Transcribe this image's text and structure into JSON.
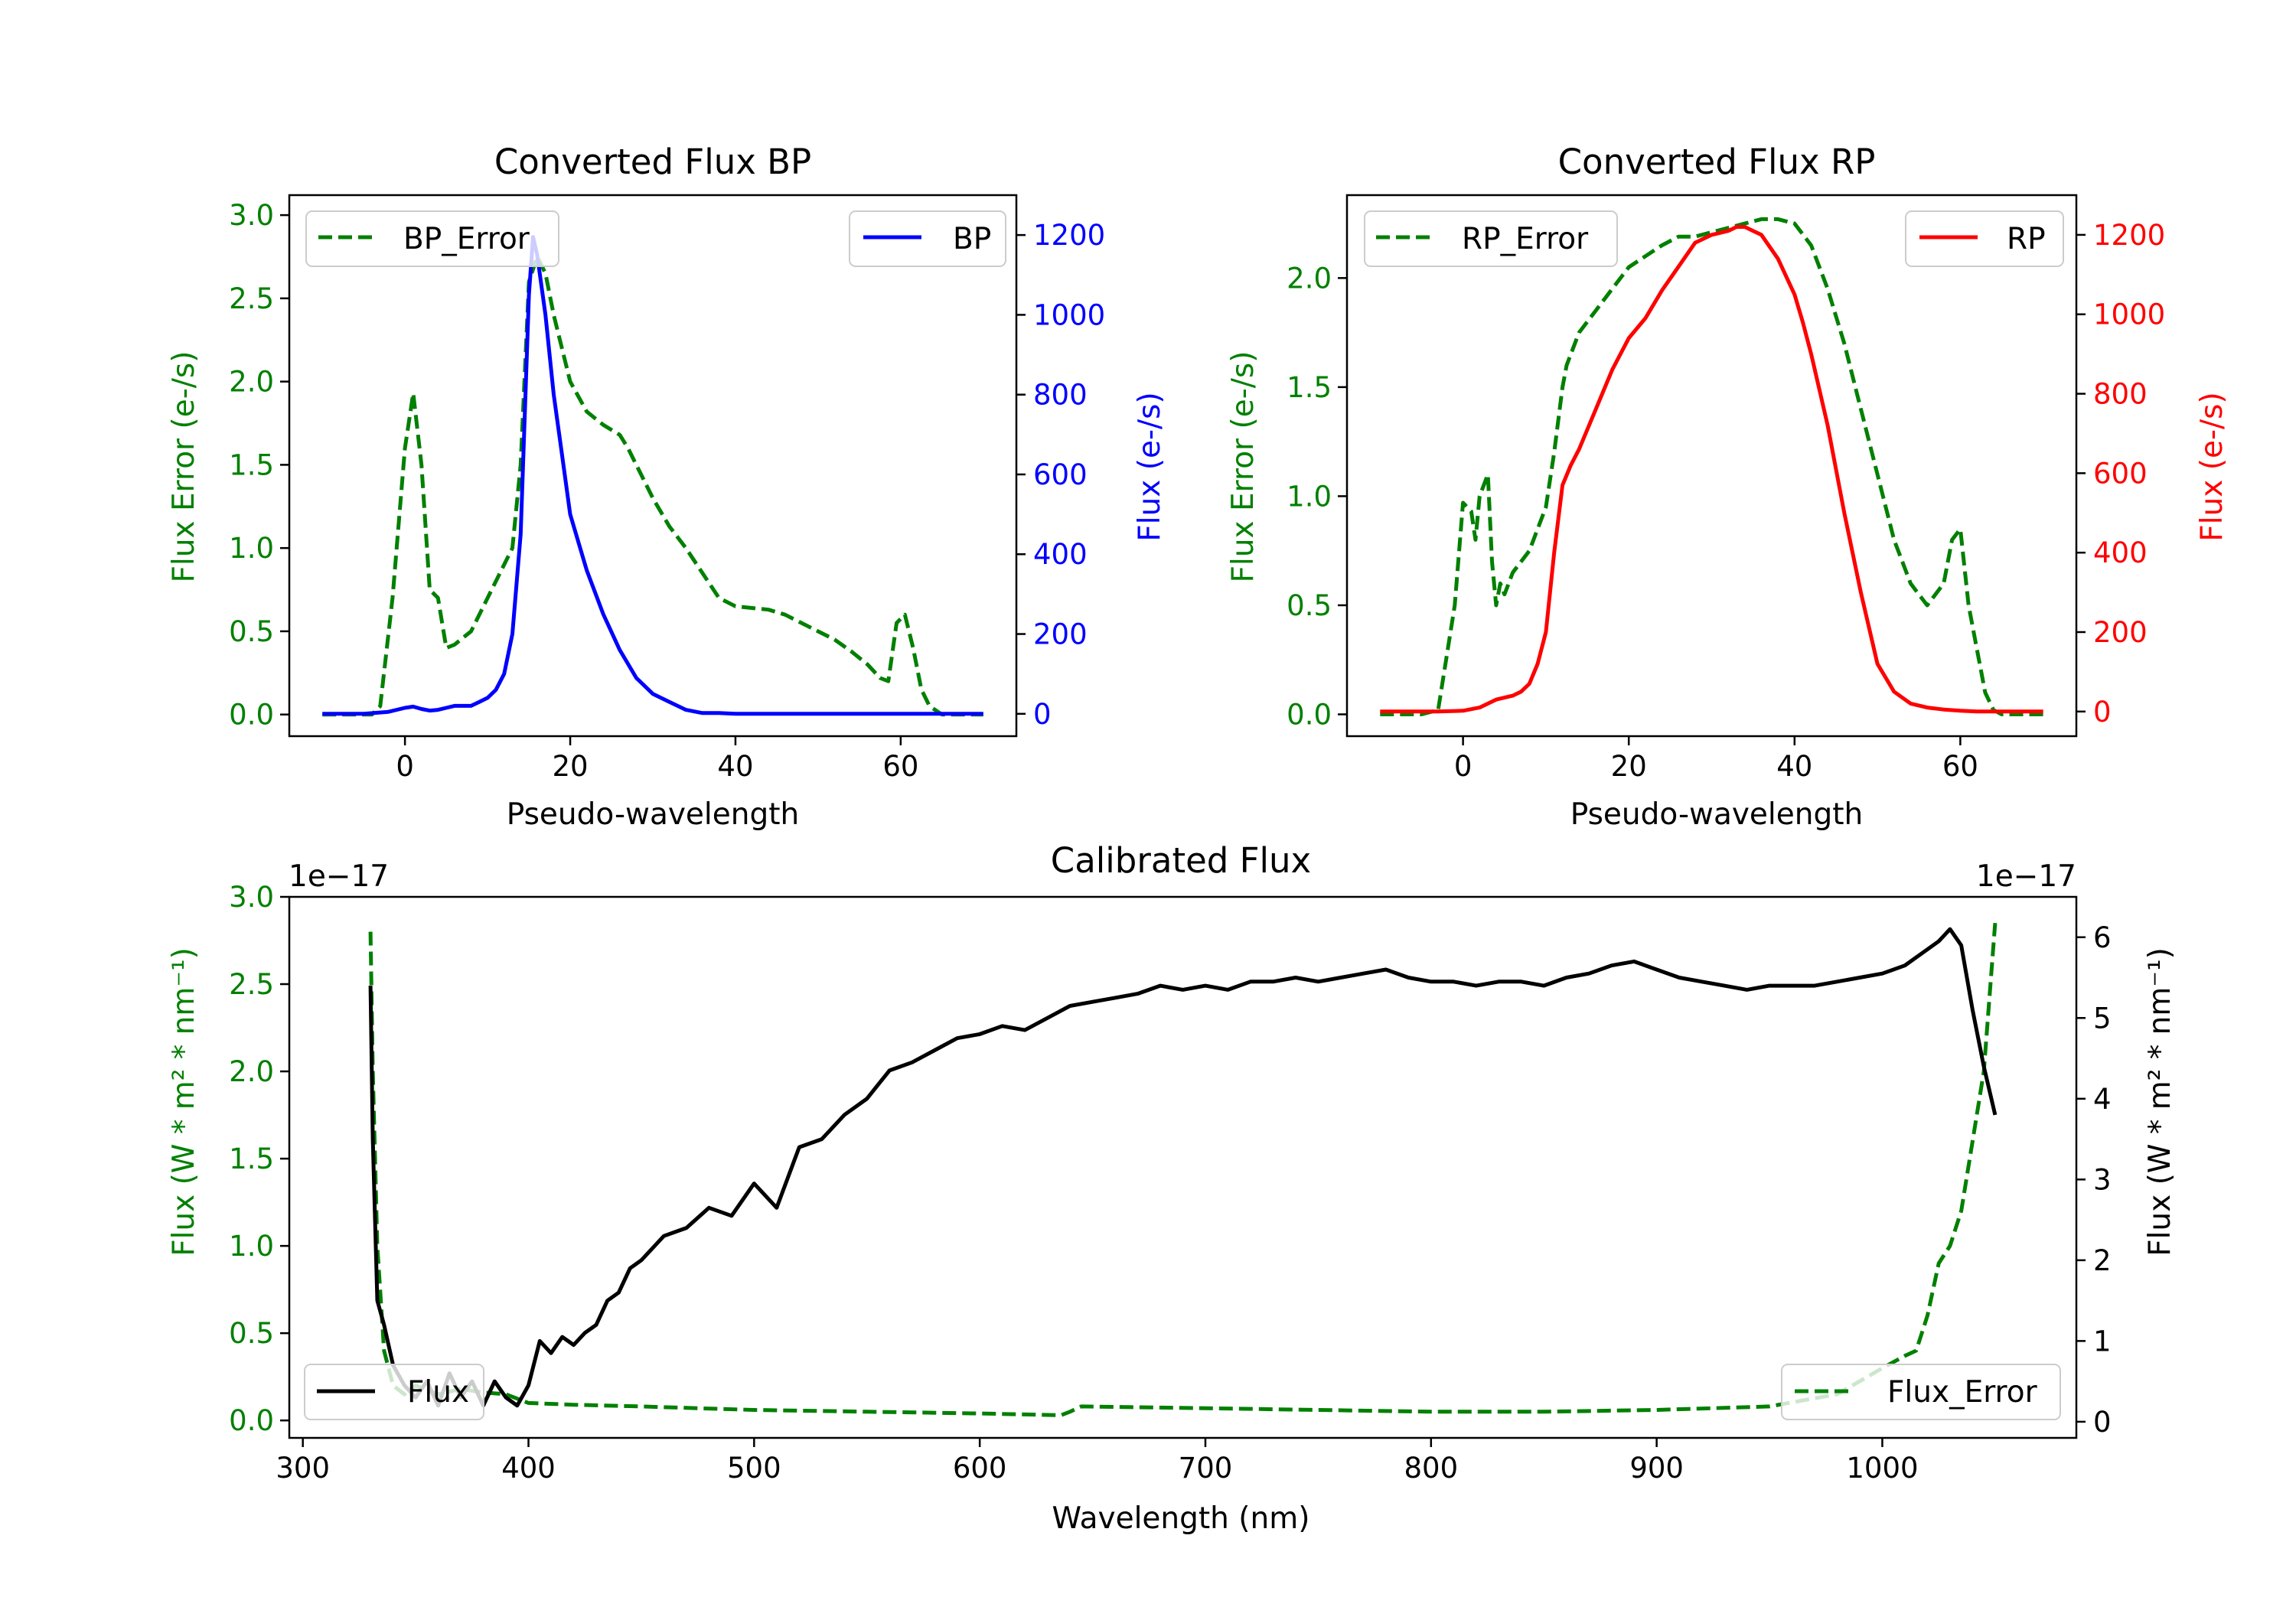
{
  "colors": {
    "green": "#008000",
    "blue": "#0000ff",
    "red": "#ff0000",
    "black": "#000000"
  },
  "chart_data": [
    {
      "id": "bp",
      "type": "line",
      "title": "Converted Flux BP",
      "xlabel": "Pseudo-wavelength",
      "ylabel_left": "Flux Error (e-/s)",
      "ylabel_right": "Flux (e-/s)",
      "xlim": [
        -14,
        74
      ],
      "ylim_left": [
        -0.13,
        3.12
      ],
      "ylim_right": [
        -56,
        1300
      ],
      "xticks": [
        "0",
        "20",
        "40",
        "60"
      ],
      "yticks_left": [
        "0.0",
        "0.5",
        "1.0",
        "1.5",
        "2.0",
        "2.5",
        "3.0"
      ],
      "yticks_right": [
        "0",
        "200",
        "400",
        "600",
        "800",
        "1000",
        "1200"
      ],
      "legend_left": "BP_Error",
      "legend_right": "BP",
      "series": [
        {
          "name": "BP_Error",
          "axis": "left",
          "color": "#008000",
          "style": "dashed",
          "x": [
            -10,
            -4,
            -3,
            -1.5,
            0,
            1,
            2,
            3,
            4,
            5,
            6,
            8,
            10,
            12,
            13,
            14,
            15,
            16,
            17,
            18,
            20,
            22,
            24,
            26,
            27,
            28,
            30,
            32,
            34,
            36,
            38,
            40,
            42,
            44,
            46,
            48,
            50,
            52,
            54,
            56,
            57.5,
            58.5,
            59.5,
            60.5,
            61.5,
            62.5,
            63.5,
            65,
            70
          ],
          "y": [
            0,
            0,
            0.05,
            0.7,
            1.6,
            1.93,
            1.5,
            0.75,
            0.7,
            0.4,
            0.42,
            0.5,
            0.7,
            0.9,
            1.0,
            1.5,
            2.6,
            2.75,
            2.65,
            2.4,
            2.0,
            1.82,
            1.74,
            1.68,
            1.6,
            1.5,
            1.3,
            1.13,
            1.0,
            0.85,
            0.7,
            0.65,
            0.64,
            0.63,
            0.6,
            0.55,
            0.5,
            0.45,
            0.38,
            0.3,
            0.22,
            0.2,
            0.55,
            0.6,
            0.4,
            0.15,
            0.05,
            0,
            0
          ]
        },
        {
          "name": "BP",
          "axis": "right",
          "color": "#0000ff",
          "style": "solid",
          "x": [
            -10,
            -5,
            -2,
            0,
            1,
            2,
            3,
            4,
            5,
            6,
            8,
            9,
            10,
            11,
            12,
            13,
            14,
            15,
            15.5,
            16,
            17,
            18,
            19,
            20,
            22,
            24,
            26,
            28,
            30,
            32,
            34,
            36,
            38,
            40,
            45,
            50,
            55,
            60,
            65,
            70
          ],
          "y": [
            0,
            0,
            5,
            15,
            18,
            12,
            8,
            10,
            15,
            20,
            20,
            30,
            40,
            60,
            100,
            200,
            450,
            1050,
            1195,
            1150,
            1000,
            800,
            650,
            500,
            360,
            250,
            160,
            90,
            50,
            30,
            10,
            2,
            2,
            0,
            0,
            0,
            0,
            0,
            0,
            0
          ]
        }
      ]
    },
    {
      "id": "rp",
      "type": "line",
      "title": "Converted Flux RP",
      "xlabel": "Pseudo-wavelength",
      "ylabel_left": "Flux Error (e-/s)",
      "ylabel_right": "Flux (e-/s)",
      "xlim": [
        -14,
        74
      ],
      "ylim_left": [
        -0.1,
        2.38
      ],
      "ylim_right": [
        -62,
        1300
      ],
      "xticks": [
        "0",
        "20",
        "40",
        "60"
      ],
      "yticks_left": [
        "0.0",
        "0.5",
        "1.0",
        "1.5",
        "2.0"
      ],
      "yticks_right": [
        "0",
        "200",
        "400",
        "600",
        "800",
        "1000",
        "1200"
      ],
      "legend_left": "RP_Error",
      "legend_right": "RP",
      "series": [
        {
          "name": "RP_Error",
          "axis": "left",
          "color": "#008000",
          "style": "dashed",
          "x": [
            -10,
            -5,
            -3,
            -1,
            0,
            1,
            1.5,
            2,
            3,
            3.5,
            4,
            4.5,
            5,
            6,
            8,
            10,
            11,
            12,
            12.5,
            13,
            14,
            16,
            18,
            20,
            22,
            24,
            26,
            28,
            30,
            32,
            34,
            36,
            38,
            40,
            42,
            44,
            46,
            48,
            50,
            52,
            54,
            55,
            56,
            57,
            58,
            59,
            60,
            61,
            62,
            63,
            64,
            65,
            70
          ],
          "y": [
            0,
            0,
            0.02,
            0.5,
            0.97,
            0.93,
            0.8,
            1.0,
            1.1,
            0.7,
            0.5,
            0.6,
            0.55,
            0.65,
            0.75,
            0.95,
            1.2,
            1.5,
            1.6,
            1.65,
            1.75,
            1.85,
            1.95,
            2.05,
            2.1,
            2.15,
            2.19,
            2.19,
            2.21,
            2.23,
            2.25,
            2.27,
            2.27,
            2.25,
            2.15,
            1.95,
            1.7,
            1.4,
            1.1,
            0.8,
            0.6,
            0.55,
            0.5,
            0.55,
            0.6,
            0.8,
            0.85,
            0.5,
            0.3,
            0.1,
            0.02,
            0,
            0
          ]
        },
        {
          "name": "RP",
          "axis": "right",
          "color": "#ff0000",
          "style": "solid",
          "x": [
            -10,
            -3,
            0,
            2,
            4,
            6,
            7,
            8,
            9,
            10,
            11,
            12,
            13,
            14,
            16,
            18,
            20,
            22,
            24,
            26,
            28,
            30,
            32,
            33,
            34,
            35,
            36,
            38,
            40,
            41,
            42,
            44,
            46,
            48,
            50,
            52,
            54,
            56,
            58,
            60,
            62,
            66,
            70
          ],
          "y": [
            0,
            0,
            2,
            10,
            30,
            40,
            50,
            70,
            120,
            200,
            400,
            570,
            620,
            660,
            760,
            860,
            940,
            990,
            1060,
            1120,
            1180,
            1200,
            1210,
            1220,
            1220,
            1210,
            1200,
            1140,
            1050,
            980,
            900,
            720,
            500,
            300,
            120,
            50,
            20,
            10,
            5,
            2,
            0,
            0,
            0
          ]
        }
      ]
    },
    {
      "id": "cal",
      "type": "line",
      "title": "Calibrated Flux",
      "xlabel": "Wavelength (nm)",
      "ylabel_left": "Flux (W * m² * nm⁻¹)",
      "ylabel_right": "Flux (W * m² * nm⁻¹)",
      "offset_left": "1e−17",
      "offset_right": "1e−17",
      "xlim": [
        294,
        1086
      ],
      "ylim_left": [
        -0.1,
        3.0
      ],
      "ylim_right": [
        -0.2,
        6.5
      ],
      "xticks": [
        "300",
        "400",
        "500",
        "600",
        "700",
        "800",
        "900",
        "1000"
      ],
      "yticks_left": [
        "0.0",
        "0.5",
        "1.0",
        "1.5",
        "2.0",
        "2.5",
        "3.0"
      ],
      "yticks_right": [
        "0",
        "1",
        "2",
        "3",
        "4",
        "5",
        "6"
      ],
      "legend_left": "Flux",
      "legend_right": "Flux_Error",
      "series": [
        {
          "name": "Flux_Error",
          "axis": "left",
          "color": "#008000",
          "style": "dashed",
          "x": [
            330,
            331,
            333,
            336,
            340,
            345,
            350,
            360,
            370,
            380,
            390,
            400,
            420,
            450,
            500,
            550,
            600,
            636,
            640,
            645,
            700,
            750,
            800,
            850,
            900,
            950,
            980,
            1000,
            1010,
            1015,
            1020,
            1025,
            1030,
            1035,
            1040,
            1045,
            1050
          ],
          "y": [
            2.8,
            2.0,
            1.0,
            0.4,
            0.2,
            0.15,
            0.2,
            0.15,
            0.18,
            0.16,
            0.15,
            0.1,
            0.09,
            0.08,
            0.06,
            0.05,
            0.04,
            0.03,
            0.05,
            0.08,
            0.07,
            0.06,
            0.05,
            0.05,
            0.06,
            0.08,
            0.15,
            0.3,
            0.37,
            0.4,
            0.6,
            0.9,
            1.0,
            1.2,
            1.6,
            2.0,
            2.85
          ]
        },
        {
          "name": "Flux",
          "axis": "right",
          "color": "#000000",
          "style": "solid",
          "x": [
            330,
            331,
            333,
            336,
            340,
            345,
            350,
            355,
            360,
            365,
            370,
            375,
            380,
            385,
            390,
            395,
            400,
            405,
            410,
            415,
            420,
            425,
            430,
            435,
            440,
            445,
            450,
            460,
            470,
            480,
            490,
            500,
            510,
            520,
            530,
            540,
            550,
            560,
            570,
            580,
            590,
            600,
            610,
            620,
            630,
            640,
            650,
            660,
            670,
            680,
            690,
            700,
            710,
            720,
            730,
            740,
            750,
            760,
            770,
            780,
            790,
            800,
            810,
            820,
            830,
            840,
            850,
            860,
            870,
            880,
            890,
            900,
            910,
            920,
            930,
            940,
            950,
            960,
            970,
            980,
            990,
            1000,
            1010,
            1020,
            1025,
            1030,
            1035,
            1040,
            1045,
            1050
          ],
          "y": [
            5.4,
            3.5,
            1.5,
            1.2,
            0.7,
            0.45,
            0.3,
            0.5,
            0.2,
            0.6,
            0.3,
            0.5,
            0.2,
            0.5,
            0.3,
            0.2,
            0.45,
            1.0,
            0.85,
            1.05,
            0.95,
            1.1,
            1.2,
            1.5,
            1.6,
            1.9,
            2.0,
            2.3,
            2.4,
            2.65,
            2.55,
            2.95,
            2.65,
            3.4,
            3.5,
            3.8,
            4.0,
            4.35,
            4.45,
            4.6,
            4.75,
            4.8,
            4.9,
            4.85,
            5.0,
            5.15,
            5.2,
            5.25,
            5.3,
            5.4,
            5.35,
            5.4,
            5.35,
            5.45,
            5.45,
            5.5,
            5.45,
            5.5,
            5.55,
            5.6,
            5.5,
            5.45,
            5.45,
            5.4,
            5.45,
            5.45,
            5.4,
            5.5,
            5.55,
            5.65,
            5.7,
            5.6,
            5.5,
            5.45,
            5.4,
            5.35,
            5.4,
            5.4,
            5.4,
            5.45,
            5.5,
            5.55,
            5.65,
            5.85,
            5.95,
            6.1,
            5.9,
            5.1,
            4.4,
            3.8
          ]
        }
      ]
    }
  ]
}
